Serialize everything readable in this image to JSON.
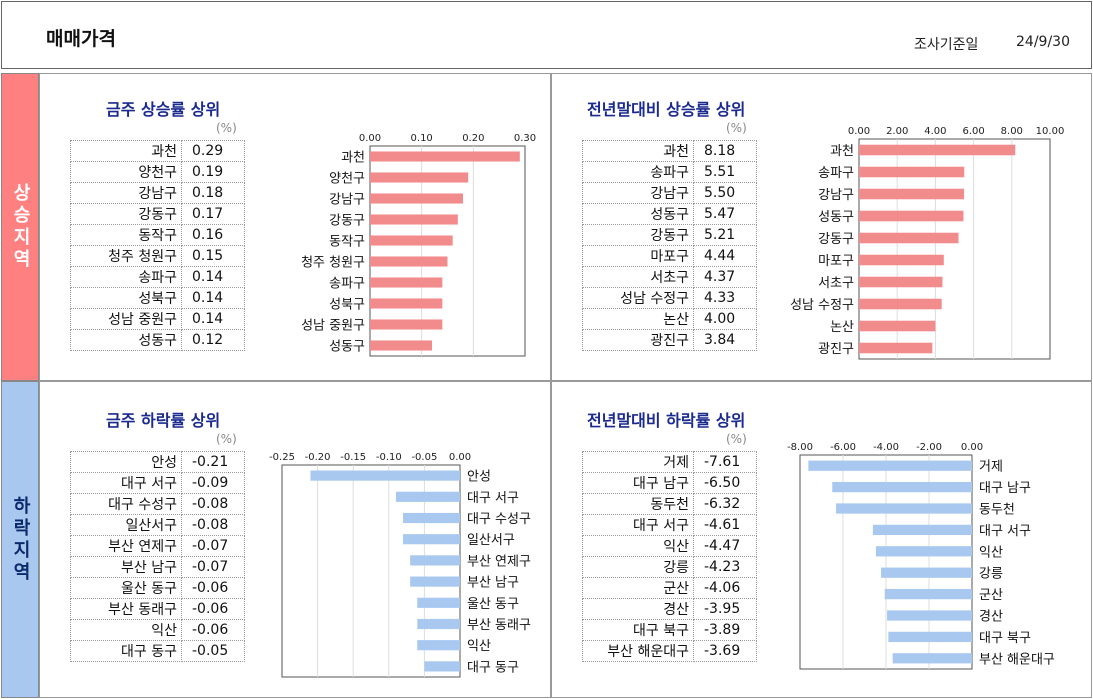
{
  "header": {
    "title": "매매가격",
    "survey_label": "조사기준일",
    "survey_date": "24/9/30"
  },
  "sections": {
    "rise": "상승지역",
    "fall": "하락지역"
  },
  "unit_label": "(%)",
  "panels": [
    {
      "id": "weekly_rise",
      "title": "금주 상승률 상위",
      "chart_data": {
        "type": "bar",
        "orientation": "horizontal",
        "categories": [
          "과천",
          "양천구",
          "강남구",
          "강동구",
          "동작구",
          "청주 청원구",
          "송파구",
          "성북구",
          "성남 중원구",
          "성동구"
        ],
        "values": [
          0.29,
          0.19,
          0.18,
          0.17,
          0.16,
          0.15,
          0.14,
          0.14,
          0.14,
          0.12
        ],
        "labels": [
          "0.29",
          "0.19",
          "0.18",
          "0.17",
          "0.16",
          "0.15",
          "0.14",
          "0.14",
          "0.14",
          "0.12"
        ],
        "xlim": [
          0,
          0.3
        ],
        "ticks": [
          "0.00",
          "0.10",
          "0.20",
          "0.30"
        ],
        "bar_color": "#f28b8b"
      }
    },
    {
      "id": "ytd_rise",
      "title": "전년말대비 상승률 상위",
      "chart_data": {
        "type": "bar",
        "orientation": "horizontal",
        "categories": [
          "과천",
          "송파구",
          "강남구",
          "성동구",
          "강동구",
          "마포구",
          "서초구",
          "성남 수정구",
          "논산",
          "광진구"
        ],
        "values": [
          8.18,
          5.51,
          5.5,
          5.47,
          5.21,
          4.44,
          4.37,
          4.33,
          4.0,
          3.84
        ],
        "labels": [
          "8.18",
          "5.51",
          "5.50",
          "5.47",
          "5.21",
          "4.44",
          "4.37",
          "4.33",
          "4.00",
          "3.84"
        ],
        "xlim": [
          0,
          10
        ],
        "ticks": [
          "0.00",
          "2.00",
          "4.00",
          "6.00",
          "8.00",
          "10.00"
        ],
        "bar_color": "#f28b8b"
      }
    },
    {
      "id": "weekly_fall",
      "title": "금주 하락률 상위",
      "chart_data": {
        "type": "bar",
        "orientation": "horizontal",
        "categories": [
          "안성",
          "대구 서구",
          "대구 수성구",
          "일산서구",
          "부산 연제구",
          "부산 남구",
          "울산 동구",
          "부산 동래구",
          "익산",
          "대구 동구"
        ],
        "values": [
          -0.21,
          -0.09,
          -0.08,
          -0.08,
          -0.07,
          -0.07,
          -0.06,
          -0.06,
          -0.06,
          -0.05
        ],
        "labels": [
          "-0.21",
          "-0.09",
          "-0.08",
          "-0.08",
          "-0.07",
          "-0.07",
          "-0.06",
          "-0.06",
          "-0.06",
          "-0.05"
        ],
        "xlim": [
          -0.25,
          0
        ],
        "ticks": [
          "-0.25",
          "-0.20",
          "-0.15",
          "-0.10",
          "-0.05",
          "0.00"
        ],
        "bar_color": "#a9c8f0"
      }
    },
    {
      "id": "ytd_fall",
      "title": "전년말대비 하락률 상위",
      "chart_data": {
        "type": "bar",
        "orientation": "horizontal",
        "categories": [
          "거제",
          "대구 남구",
          "동두천",
          "대구 서구",
          "익산",
          "강릉",
          "군산",
          "경산",
          "대구 북구",
          "부산 해운대구"
        ],
        "values": [
          -7.61,
          -6.5,
          -6.32,
          -4.61,
          -4.47,
          -4.23,
          -4.06,
          -3.95,
          -3.89,
          -3.69
        ],
        "labels": [
          "-7.61",
          "-6.50",
          "-6.32",
          "-4.61",
          "-4.47",
          "-4.23",
          "-4.06",
          "-3.95",
          "-3.89",
          "-3.69"
        ],
        "xlim": [
          -8,
          0
        ],
        "ticks": [
          "-8.00",
          "-6.00",
          "-4.00",
          "-2.00",
          "0.00"
        ],
        "bar_color": "#a9c8f0"
      }
    }
  ]
}
